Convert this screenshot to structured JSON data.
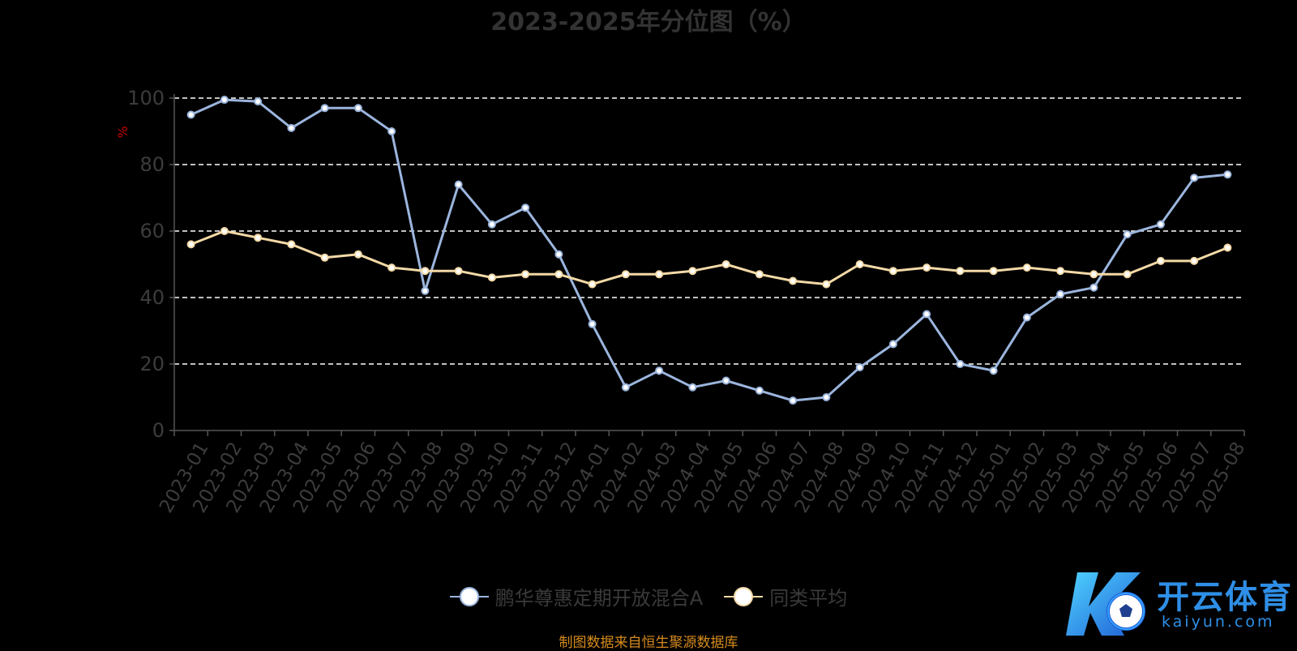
{
  "chart_data": {
    "type": "line",
    "title": "2023-2025年分位图（%）",
    "ylabel": "%",
    "xlabel": "",
    "ylim": [
      0,
      100
    ],
    "yticks": [
      0,
      20,
      40,
      60,
      80,
      100
    ],
    "grid": true,
    "legend_position": "bottom-center",
    "categories": [
      "2023-01",
      "2023-02",
      "2023-03",
      "2023-04",
      "2023-05",
      "2023-06",
      "2023-07",
      "2023-08",
      "2023-09",
      "2023-10",
      "2023-11",
      "2023-12",
      "2024-01",
      "2024-02",
      "2024-03",
      "2024-04",
      "2024-05",
      "2024-06",
      "2024-07",
      "2024-08",
      "2024-09",
      "2024-10",
      "2024-11",
      "2024-12",
      "2025-01",
      "2025-02",
      "2025-03",
      "2025-04",
      "2025-05",
      "2025-06",
      "2025-07",
      "2025-08"
    ],
    "series": [
      {
        "name": "鹏华尊惠定期开放混合A",
        "color": "#9bb5dd",
        "values": [
          95,
          99.5,
          99,
          91,
          97,
          97,
          90,
          42,
          74,
          62,
          67,
          53,
          32,
          13,
          18,
          13,
          15,
          12,
          9,
          10,
          19,
          26,
          35,
          20,
          18,
          34,
          41,
          43,
          59,
          62,
          76,
          77
        ]
      },
      {
        "name": "同类平均",
        "color": "#f3d9a6",
        "values": [
          56,
          60,
          58,
          56,
          52,
          53,
          49,
          48,
          48,
          46,
          47,
          47,
          44,
          47,
          47,
          48,
          50,
          47,
          45,
          44,
          50,
          48,
          49,
          48,
          48,
          49,
          48,
          47,
          47,
          51,
          51,
          55
        ]
      }
    ]
  },
  "source_note": "制图数据来自恒生聚源数据库",
  "watermark": {
    "text": "开云体育",
    "sub": "kaiyun.com"
  }
}
